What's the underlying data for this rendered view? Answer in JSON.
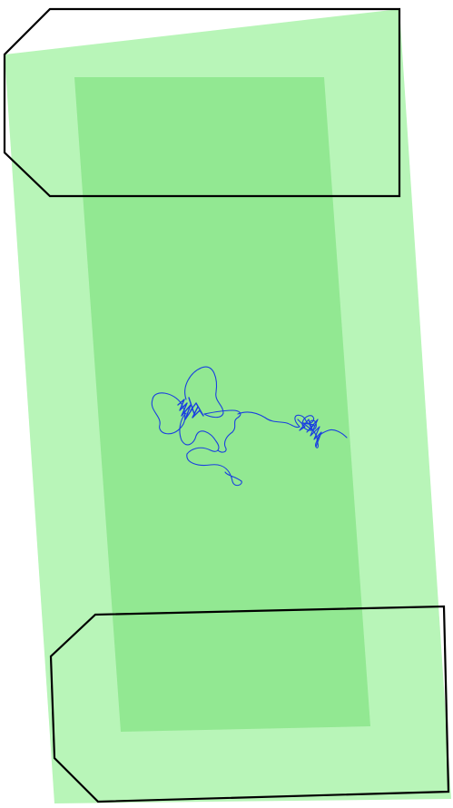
{
  "map": {
    "layers": [
      {
        "id": "outer-coverage-area",
        "kind": "area",
        "fill": "#b8f5b8"
      },
      {
        "id": "inner-coverage-area",
        "kind": "area",
        "fill": "#92e892"
      },
      {
        "id": "top-zone",
        "kind": "zone-outline",
        "stroke": "#000000"
      },
      {
        "id": "bottom-zone",
        "kind": "zone-outline",
        "stroke": "#000000"
      },
      {
        "id": "track-path",
        "kind": "trajectory",
        "stroke": "#1a3fe0"
      }
    ]
  }
}
